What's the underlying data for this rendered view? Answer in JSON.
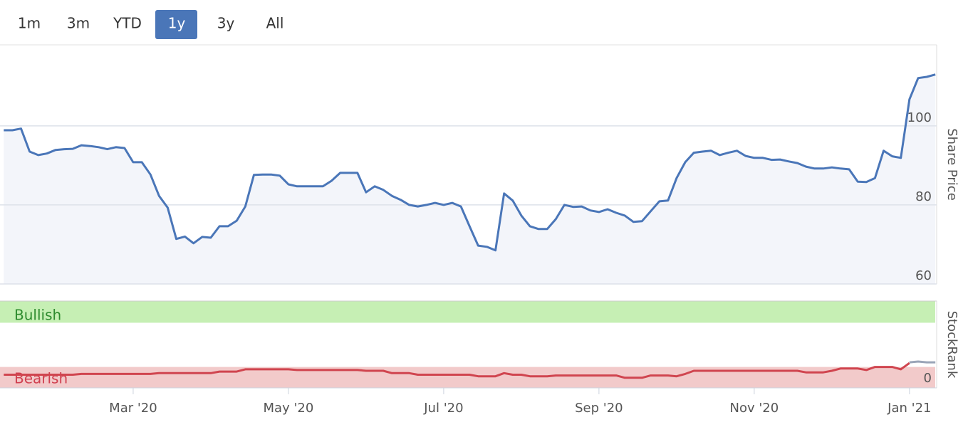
{
  "range_buttons": {
    "labels": [
      "1m",
      "3m",
      "YTD",
      "1y",
      "3y",
      "All"
    ],
    "active": "1y"
  },
  "chart_data": [
    {
      "type": "line",
      "y_axis_label": "Share Price",
      "ylim": [
        60,
        120.5
      ],
      "yticks": [
        60,
        80,
        100
      ],
      "grid": true,
      "fill": "#f3f5fa",
      "series": [
        {
          "color": "#4a76b8",
          "values": [
            98.9,
            98.9,
            99.3,
            93.5,
            92.6,
            93.0,
            93.9,
            94.1,
            94.2,
            95.1,
            94.9,
            94.6,
            94.1,
            94.6,
            94.4,
            90.8,
            90.8,
            87.7,
            82.3,
            79.3,
            71.4,
            72.0,
            70.3,
            71.9,
            71.7,
            74.6,
            74.6,
            76.0,
            79.6,
            87.6,
            87.7,
            87.7,
            87.4,
            85.2,
            84.7,
            84.7,
            84.7,
            84.7,
            86.1,
            88.1,
            88.1,
            88.1,
            83.2,
            84.7,
            83.8,
            82.3,
            81.3,
            80.0,
            79.6,
            80.0,
            80.5,
            80.0,
            80.5,
            79.6,
            74.6,
            69.7,
            69.4,
            68.5,
            82.9,
            81.1,
            77.3,
            74.6,
            73.9,
            73.9,
            76.4,
            80.0,
            79.5,
            79.6,
            78.6,
            78.2,
            78.9,
            78.0,
            77.3,
            75.7,
            75.9,
            78.4,
            80.9,
            81.1,
            86.8,
            90.8,
            93.2,
            93.5,
            93.7,
            92.6,
            93.2,
            93.7,
            92.4,
            91.9,
            91.9,
            91.4,
            91.5,
            91.0,
            90.6,
            89.7,
            89.2,
            89.2,
            89.5,
            89.2,
            89.0,
            85.9,
            85.8,
            86.8,
            93.7,
            92.3,
            91.9,
            106.7,
            112.1,
            112.4,
            113.0
          ]
        }
      ]
    },
    {
      "type": "line",
      "y_axis_label": "StockRank",
      "ylim": [
        -12,
        100
      ],
      "yticks": [
        0
      ],
      "x": [
        null,
        null,
        null,
        null,
        null,
        null,
        null,
        null,
        null,
        null,
        null,
        null,
        null,
        null,
        null,
        "Mar '20",
        null,
        null,
        null,
        null,
        null,
        null,
        null,
        null,
        null,
        null,
        null,
        null,
        null,
        null,
        null,
        null,
        null,
        "May '20",
        null,
        null,
        null,
        null,
        null,
        null,
        null,
        null,
        null,
        null,
        null,
        null,
        null,
        null,
        null,
        null,
        null,
        "Jul '20",
        null,
        null,
        null,
        null,
        null,
        null,
        null,
        null,
        null,
        null,
        null,
        null,
        null,
        null,
        null,
        null,
        null,
        "Sep '20",
        null,
        null,
        null,
        null,
        null,
        null,
        null,
        null,
        null,
        null,
        null,
        null,
        null,
        null,
        null,
        null,
        null,
        "Nov '20",
        null,
        null,
        null,
        null,
        null,
        null,
        null,
        null,
        null,
        null,
        null,
        null,
        null,
        null,
        null,
        null,
        null,
        "Jan '21",
        null,
        null,
        null
      ],
      "bands": [
        {
          "label": "Bullish",
          "from": 72,
          "to": 100,
          "color": "#c6efb4",
          "text_color": "#2e8b2e"
        },
        {
          "label": "Bearish",
          "from": -12,
          "to": 15,
          "color": "#f2caca",
          "text_color": "#d04050"
        }
      ],
      "series": [
        {
          "color": "#d0454f",
          "values": [
            5,
            5,
            5,
            5,
            5,
            5,
            5,
            5,
            5,
            6,
            6,
            6,
            6,
            6,
            6,
            6,
            6,
            6,
            7,
            7,
            7,
            7,
            7,
            7,
            7,
            9,
            9,
            9,
            12,
            12,
            12,
            12,
            12,
            12,
            11,
            11,
            11,
            11,
            11,
            11,
            11,
            11,
            10,
            10,
            10,
            7,
            7,
            7,
            5,
            5,
            5,
            5,
            5,
            5,
            5,
            3,
            3,
            3,
            7,
            5,
            5,
            3,
            3,
            3,
            4,
            4,
            4,
            4,
            4,
            4,
            4,
            4,
            1,
            1,
            1,
            4,
            4,
            4,
            3,
            6,
            10,
            10,
            10,
            10,
            10,
            10,
            10,
            10,
            10,
            10,
            10,
            10,
            10,
            8,
            8,
            8,
            10,
            13,
            13,
            13,
            11,
            15,
            15,
            15,
            12,
            20,
            null,
            null,
            null
          ]
        },
        {
          "color": "#9aa5b8",
          "values": [
            null,
            null,
            null,
            null,
            null,
            null,
            null,
            null,
            null,
            null,
            null,
            null,
            null,
            null,
            null,
            null,
            null,
            null,
            null,
            null,
            null,
            null,
            null,
            null,
            null,
            null,
            null,
            null,
            null,
            null,
            null,
            null,
            null,
            null,
            null,
            null,
            null,
            null,
            null,
            null,
            null,
            null,
            null,
            null,
            null,
            null,
            null,
            null,
            null,
            null,
            null,
            null,
            null,
            null,
            null,
            null,
            null,
            null,
            null,
            null,
            null,
            null,
            null,
            null,
            null,
            null,
            null,
            null,
            null,
            null,
            null,
            null,
            null,
            null,
            null,
            null,
            null,
            null,
            null,
            null,
            null,
            null,
            null,
            null,
            null,
            null,
            null,
            null,
            null,
            null,
            null,
            null,
            null,
            null,
            null,
            null,
            null,
            null,
            null,
            null,
            null,
            null,
            null,
            null,
            null,
            21,
            22,
            21,
            21
          ]
        }
      ]
    }
  ]
}
